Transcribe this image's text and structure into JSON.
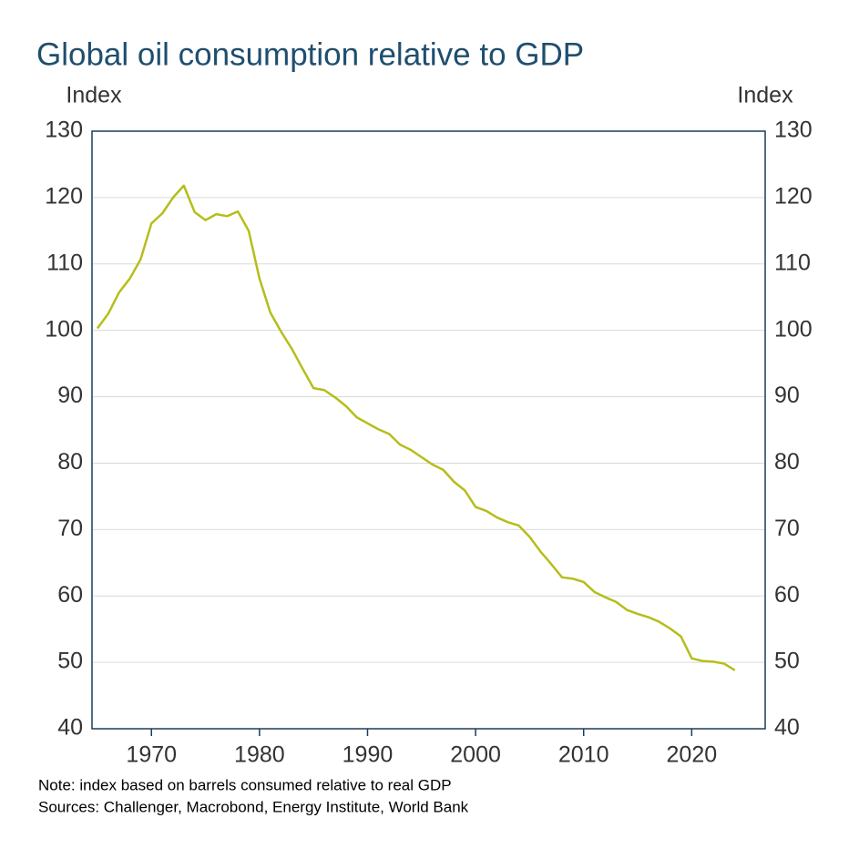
{
  "chart_data": {
    "type": "line",
    "title": "Global oil consumption relative to GDP",
    "y_label": "Index",
    "y2_label": "Index",
    "x": [
      1965,
      1966,
      1967,
      1968,
      1969,
      1970,
      1971,
      1972,
      1973,
      1974,
      1975,
      1976,
      1977,
      1978,
      1979,
      1980,
      1981,
      1982,
      1983,
      1984,
      1985,
      1986,
      1987,
      1988,
      1989,
      1990,
      1991,
      1992,
      1993,
      1994,
      1995,
      1996,
      1997,
      1998,
      1999,
      2000,
      2001,
      2002,
      2003,
      2004,
      2005,
      2006,
      2007,
      2008,
      2009,
      2010,
      2011,
      2012,
      2013,
      2014,
      2015,
      2016,
      2017,
      2018,
      2019,
      2020,
      2021,
      2022,
      2023,
      2024
    ],
    "series": [
      {
        "name": "Global oil consumption relative to GDP",
        "color": "#b5be1a",
        "values": [
          100.3,
          102.5,
          105.7,
          107.8,
          110.7,
          116.1,
          117.6,
          120.0,
          121.8,
          117.8,
          116.6,
          117.5,
          117.2,
          117.9,
          115.0,
          107.8,
          102.7,
          99.8,
          97.2,
          94.2,
          91.3,
          91.0,
          89.9,
          88.6,
          86.9,
          86.0,
          85.1,
          84.4,
          82.8,
          82.0,
          80.9,
          79.8,
          79.0,
          77.2,
          75.9,
          73.4,
          72.8,
          71.8,
          71.1,
          70.6,
          68.9,
          66.7,
          64.8,
          62.8,
          62.6,
          62.1,
          60.6,
          59.8,
          59.1,
          57.9,
          57.3,
          56.8,
          56.1,
          55.1,
          53.9,
          50.6,
          50.2,
          50.1,
          49.8,
          48.8
        ]
      }
    ],
    "xlim": [
      1964.5,
      2026.8
    ],
    "xticks": [
      1970,
      1980,
      1990,
      2000,
      2010,
      2020
    ],
    "ylim": [
      40,
      130
    ],
    "yticks": [
      40,
      50,
      60,
      70,
      80,
      90,
      100,
      110,
      120,
      130
    ],
    "y2lim": [
      40,
      130
    ],
    "y2ticks": [
      40,
      50,
      60,
      70,
      80,
      90,
      100,
      110,
      120,
      130
    ],
    "grid": true,
    "notes": [
      "Note: index based on barrels consumed relative to real GDP",
      "Sources: Challenger, Macrobond, Energy Institute, World Bank"
    ]
  }
}
